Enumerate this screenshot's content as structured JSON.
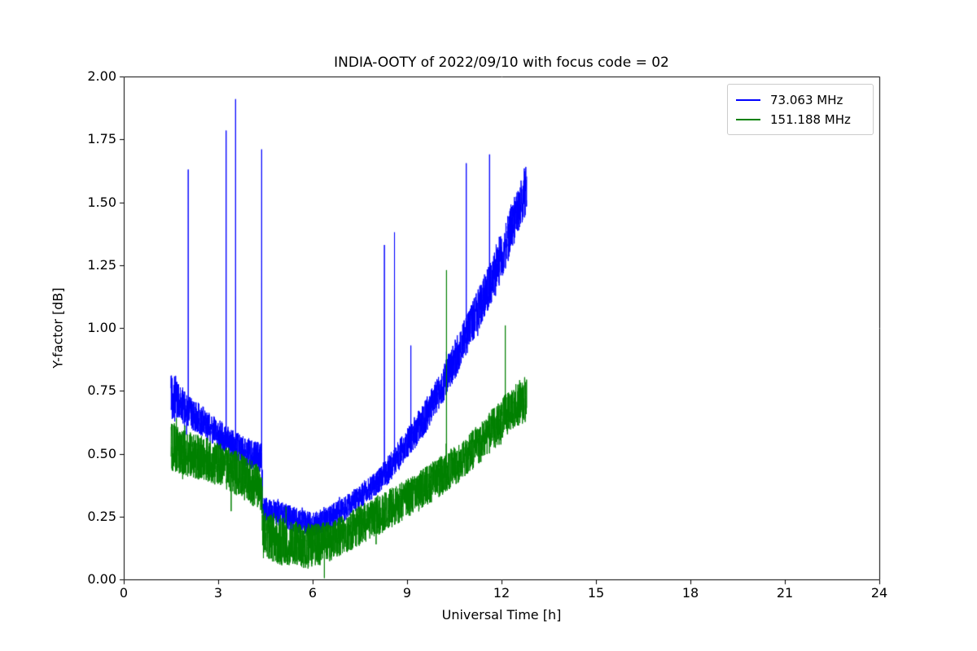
{
  "chart_data": {
    "type": "line",
    "title": "INDIA-OOTY of 2022/09/10 with focus code = 02",
    "xlabel": "Universal Time [h]",
    "ylabel": "Y-factor [dB]",
    "xlim": [
      0,
      24
    ],
    "ylim": [
      0.0,
      2.0
    ],
    "xticks": [
      0,
      3,
      6,
      9,
      12,
      15,
      18,
      21,
      24
    ],
    "xtick_labels": [
      "0",
      "3",
      "6",
      "9",
      "12",
      "15",
      "18",
      "21",
      "24"
    ],
    "yticks": [
      0.0,
      0.25,
      0.5,
      0.75,
      1.0,
      1.25,
      1.5,
      1.75,
      2.0
    ],
    "ytick_labels": [
      "0.00",
      "0.25",
      "0.50",
      "0.75",
      "1.00",
      "1.25",
      "1.50",
      "1.75",
      "2.00"
    ],
    "grid": false,
    "legend_position": "upper right",
    "sample_step_h": 0.004,
    "series": [
      {
        "name": "73.063 MHz",
        "color": "#0000ff",
        "x_start": 1.5,
        "x_end": 12.8,
        "baseline": [
          [
            1.5,
            0.74,
            0.1
          ],
          [
            2.0,
            0.67,
            0.07
          ],
          [
            2.5,
            0.63,
            0.06
          ],
          [
            3.0,
            0.58,
            0.06
          ],
          [
            3.5,
            0.53,
            0.06
          ],
          [
            4.0,
            0.5,
            0.06
          ],
          [
            4.38,
            0.48,
            0.06
          ],
          [
            4.42,
            0.28,
            0.05
          ],
          [
            5.0,
            0.26,
            0.05
          ],
          [
            5.5,
            0.235,
            0.05
          ],
          [
            6.0,
            0.215,
            0.05
          ],
          [
            6.5,
            0.24,
            0.05
          ],
          [
            7.0,
            0.28,
            0.05
          ],
          [
            7.5,
            0.33,
            0.05
          ],
          [
            8.0,
            0.38,
            0.05
          ],
          [
            8.5,
            0.45,
            0.06
          ],
          [
            9.0,
            0.54,
            0.06
          ],
          [
            9.5,
            0.63,
            0.07
          ],
          [
            10.0,
            0.74,
            0.07
          ],
          [
            10.5,
            0.87,
            0.08
          ],
          [
            11.0,
            1.0,
            0.08
          ],
          [
            11.5,
            1.14,
            0.09
          ],
          [
            12.0,
            1.29,
            0.1
          ],
          [
            12.4,
            1.43,
            0.1
          ],
          [
            12.8,
            1.56,
            0.1
          ]
        ],
        "spikes": [
          [
            2.05,
            1.63
          ],
          [
            3.25,
            1.785
          ],
          [
            3.55,
            1.91
          ],
          [
            4.38,
            1.71
          ],
          [
            8.28,
            1.33
          ],
          [
            8.6,
            1.38
          ],
          [
            9.12,
            0.93
          ],
          [
            10.88,
            1.655
          ],
          [
            11.62,
            1.69
          ]
        ]
      },
      {
        "name": "151.188 MHz",
        "color": "#008000",
        "x_start": 1.5,
        "x_end": 12.8,
        "baseline": [
          [
            1.5,
            0.53,
            0.1
          ],
          [
            2.0,
            0.5,
            0.09
          ],
          [
            2.5,
            0.48,
            0.09
          ],
          [
            3.0,
            0.46,
            0.09
          ],
          [
            3.5,
            0.43,
            0.09
          ],
          [
            4.0,
            0.39,
            0.09
          ],
          [
            4.38,
            0.36,
            0.09
          ],
          [
            4.42,
            0.18,
            0.1
          ],
          [
            5.0,
            0.155,
            0.1
          ],
          [
            5.5,
            0.14,
            0.09
          ],
          [
            6.0,
            0.13,
            0.09
          ],
          [
            6.5,
            0.15,
            0.08
          ],
          [
            7.0,
            0.18,
            0.08
          ],
          [
            7.5,
            0.215,
            0.08
          ],
          [
            8.0,
            0.25,
            0.08
          ],
          [
            8.5,
            0.285,
            0.08
          ],
          [
            9.0,
            0.32,
            0.08
          ],
          [
            9.5,
            0.36,
            0.08
          ],
          [
            10.0,
            0.405,
            0.08
          ],
          [
            10.5,
            0.45,
            0.08
          ],
          [
            11.0,
            0.505,
            0.08
          ],
          [
            11.5,
            0.565,
            0.08
          ],
          [
            12.0,
            0.635,
            0.09
          ],
          [
            12.4,
            0.685,
            0.09
          ],
          [
            12.8,
            0.72,
            0.09
          ]
        ],
        "spikes": [
          [
            10.25,
            1.23
          ],
          [
            12.12,
            1.01
          ]
        ]
      }
    ]
  },
  "legend": {
    "entries": [
      {
        "label": "73.063 MHz",
        "color": "#0000ff"
      },
      {
        "label": "151.188 MHz",
        "color": "#008000"
      }
    ]
  }
}
